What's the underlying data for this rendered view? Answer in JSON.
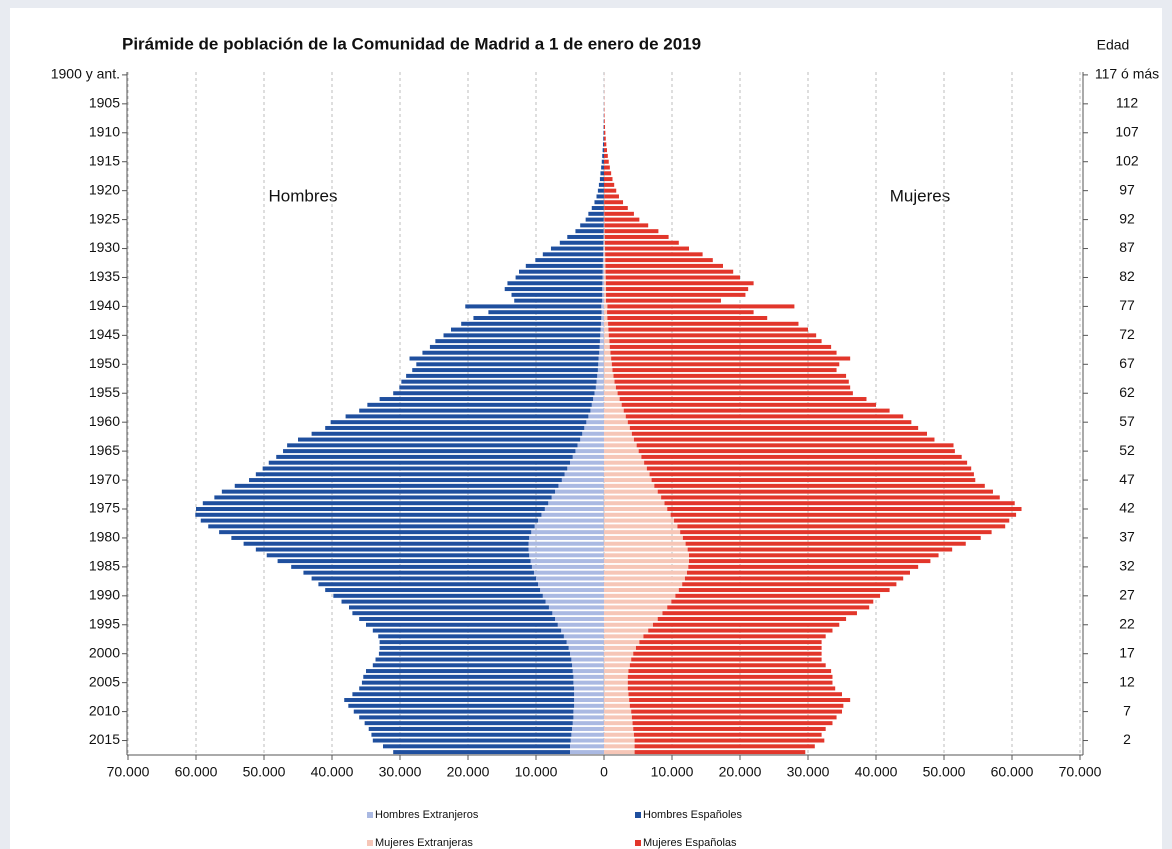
{
  "chart_data": {
    "type": "population-pyramid",
    "title": "Pirámide de población de la Comunidad de Madrid a 1 de enero de 2019",
    "right_axis_title": "Edad",
    "left_annotation": "Hombres",
    "right_annotation": "Mujeres",
    "categories": [
      "1900 y ant.",
      null,
      null,
      null,
      null,
      "1905",
      null,
      null,
      null,
      null,
      "1910",
      null,
      null,
      null,
      null,
      "1915",
      null,
      null,
      null,
      null,
      "1920",
      null,
      null,
      null,
      null,
      "1925",
      null,
      null,
      null,
      null,
      "1930",
      null,
      null,
      null,
      null,
      "1935",
      null,
      null,
      null,
      null,
      "1940",
      null,
      null,
      null,
      null,
      "1945",
      null,
      null,
      null,
      null,
      "1950",
      null,
      null,
      null,
      null,
      "1955",
      null,
      null,
      null,
      null,
      "1960",
      null,
      null,
      null,
      null,
      "1965",
      null,
      null,
      null,
      null,
      "1970",
      null,
      null,
      null,
      null,
      "1975",
      null,
      null,
      null,
      null,
      "1980",
      null,
      null,
      null,
      null,
      "1985",
      null,
      null,
      null,
      null,
      "1990",
      null,
      null,
      null,
      null,
      "1995",
      null,
      null,
      null,
      null,
      "2000",
      null,
      null,
      null,
      null,
      "2005",
      null,
      null,
      null,
      null,
      "2010",
      null,
      null,
      null,
      null,
      "2015",
      null,
      null
    ],
    "right_categories": [
      "117 ó más",
      null,
      null,
      null,
      null,
      "112",
      null,
      null,
      null,
      null,
      "107",
      null,
      null,
      null,
      null,
      "102",
      null,
      null,
      null,
      null,
      "97",
      null,
      null,
      null,
      null,
      "92",
      null,
      null,
      null,
      null,
      "87",
      null,
      null,
      null,
      null,
      "82",
      null,
      null,
      null,
      null,
      "77",
      null,
      null,
      null,
      null,
      "72",
      null,
      null,
      null,
      null,
      "67",
      null,
      null,
      null,
      null,
      "62",
      null,
      null,
      null,
      null,
      "57",
      null,
      null,
      null,
      null,
      "52",
      null,
      null,
      null,
      null,
      "47",
      null,
      null,
      null,
      null,
      "42",
      null,
      null,
      null,
      null,
      "37",
      null,
      null,
      null,
      null,
      "32",
      null,
      null,
      null,
      null,
      "27",
      null,
      null,
      null,
      null,
      "22",
      null,
      null,
      null,
      null,
      "17",
      null,
      null,
      null,
      null,
      "12",
      null,
      null,
      null,
      null,
      "7",
      null,
      null,
      null,
      null,
      "2",
      null,
      null
    ],
    "xlim": [
      0,
      70000
    ],
    "xticks": [
      0,
      {
        "value": 10000,
        "label": "10.000"
      },
      {
        "value": 20000,
        "label": "20.000"
      },
      {
        "value": 30000,
        "label": "30.000"
      },
      {
        "value": 40000,
        "label": "40.000"
      },
      {
        "value": 50000,
        "label": "50.000"
      },
      {
        "value": 60000,
        "label": "60.000"
      },
      {
        "value": 70000,
        "label": "70.000"
      }
    ],
    "grid": true,
    "series": [
      {
        "name": "Hombres Extranjeros",
        "color": "#aab9e2",
        "values": [
          0,
          0,
          0,
          0,
          0,
          0,
          0,
          0,
          0,
          0,
          0,
          0,
          0,
          0,
          0,
          0,
          0,
          0,
          0,
          0,
          10,
          10,
          20,
          20,
          30,
          40,
          50,
          60,
          80,
          100,
          120,
          140,
          160,
          180,
          200,
          220,
          240,
          260,
          260,
          260,
          400,
          350,
          400,
          450,
          500,
          550,
          600,
          650,
          700,
          800,
          850,
          900,
          1000,
          1100,
          1200,
          1400,
          1600,
          1800,
          2000,
          2300,
          2600,
          2900,
          3200,
          3500,
          3900,
          4200,
          4600,
          5000,
          5400,
          5800,
          6200,
          6700,
          7200,
          7700,
          8200,
          8700,
          9200,
          9700,
          10200,
          10700,
          11000,
          11100,
          11100,
          11000,
          10800,
          10600,
          10300,
          10000,
          9700,
          9400,
          9000,
          8600,
          8100,
          7600,
          7200,
          6800,
          6300,
          5900,
          5500,
          5200,
          5000,
          4800,
          4700,
          4600,
          4500,
          4500,
          4400,
          4400,
          4400,
          4400,
          4500,
          4500,
          4600,
          4700,
          4800,
          4900,
          5000,
          5000
        ]
      },
      {
        "name": "Hombres Españoles",
        "color": "#1f4f9e",
        "values": [
          5,
          5,
          5,
          10,
          10,
          15,
          20,
          30,
          40,
          60,
          80,
          110,
          150,
          200,
          260,
          330,
          420,
          520,
          600,
          750,
          890,
          1090,
          1380,
          1780,
          2270,
          2660,
          3450,
          4140,
          5320,
          6400,
          7680,
          8860,
          9940,
          11320,
          12300,
          12780,
          13960,
          14340,
          13340,
          12940,
          20000,
          16650,
          18800,
          20550,
          22000,
          23050,
          24200,
          24950,
          26000,
          27800,
          26750,
          27300,
          28100,
          28700,
          28900,
          29600,
          31400,
          33000,
          34000,
          35700,
          37600,
          38100,
          39800,
          41500,
          42700,
          43000,
          43600,
          44300,
          44800,
          45400,
          46000,
          47600,
          49000,
          49600,
          50800,
          51300,
          50900,
          49600,
          48000,
          45900,
          43800,
          41900,
          40100,
          38600,
          37200,
          35400,
          33900,
          33000,
          32300,
          31600,
          30800,
          30000,
          29400,
          29400,
          28800,
          28200,
          27700,
          27300,
          27500,
          27800,
          28100,
          28800,
          29300,
          30400,
          30900,
          31100,
          31600,
          32600,
          33800,
          33200,
          32300,
          31500,
          30600,
          29900,
          29400,
          29100,
          27500,
          26000
        ]
      },
      {
        "name": "Mujeres Extranjeras",
        "color": "#f6c6b7",
        "values": [
          0,
          0,
          0,
          0,
          0,
          0,
          0,
          0,
          0,
          0,
          0,
          0,
          0,
          0,
          0,
          0,
          0,
          0,
          0,
          0,
          10,
          20,
          20,
          30,
          40,
          50,
          60,
          80,
          100,
          120,
          150,
          170,
          190,
          210,
          230,
          250,
          280,
          300,
          300,
          300,
          500,
          450,
          500,
          600,
          650,
          700,
          800,
          850,
          950,
          1050,
          1150,
          1250,
          1400,
          1550,
          1750,
          2000,
          2300,
          2600,
          2900,
          3200,
          3500,
          3800,
          4100,
          4400,
          4800,
          5100,
          5500,
          5900,
          6300,
          6700,
          7000,
          7400,
          7900,
          8400,
          8900,
          9300,
          9800,
          10300,
          10800,
          11200,
          11600,
          12000,
          12300,
          12500,
          12500,
          12400,
          12200,
          11900,
          11500,
          11000,
          10500,
          9900,
          9300,
          8600,
          7900,
          7200,
          6500,
          5800,
          5200,
          4700,
          4300,
          4000,
          3800,
          3600,
          3500,
          3500,
          3500,
          3600,
          3700,
          3800,
          4000,
          4100,
          4200,
          4300,
          4400,
          4500,
          4500,
          4500
        ]
      },
      {
        "name": "Mujeres Españolas",
        "color": "#e2362b",
        "values": [
          10,
          10,
          15,
          20,
          30,
          40,
          60,
          80,
          110,
          150,
          200,
          260,
          340,
          440,
          560,
          700,
          860,
          1050,
          1250,
          1500,
          1790,
          2180,
          2780,
          3470,
          4360,
          5150,
          6440,
          7920,
          9400,
          10880,
          12350,
          14330,
          15810,
          17290,
          18770,
          19750,
          21720,
          20900,
          20500,
          16900,
          27500,
          21550,
          23500,
          28000,
          29350,
          30500,
          31200,
          32550,
          33250,
          35150,
          33450,
          32950,
          34200,
          34450,
          34450,
          34600,
          36300,
          37400,
          39100,
          40800,
          41700,
          42400,
          43400,
          44200,
          46600,
          46500,
          47100,
          47500,
          47700,
          47700,
          47600,
          48600,
          49300,
          49800,
          51500,
          52100,
          50800,
          49300,
          48200,
          45800,
          43800,
          41200,
          38900,
          36700,
          35500,
          33800,
          32800,
          32100,
          31500,
          31000,
          30100,
          29700,
          29700,
          28600,
          27700,
          27400,
          27100,
          26800,
          26800,
          27300,
          27700,
          28000,
          28800,
          29800,
          30100,
          30100,
          30500,
          31400,
          32500,
          31400,
          31000,
          30100,
          29400,
          28300,
          27600,
          27900,
          26500,
          25100
        ]
      }
    ]
  }
}
